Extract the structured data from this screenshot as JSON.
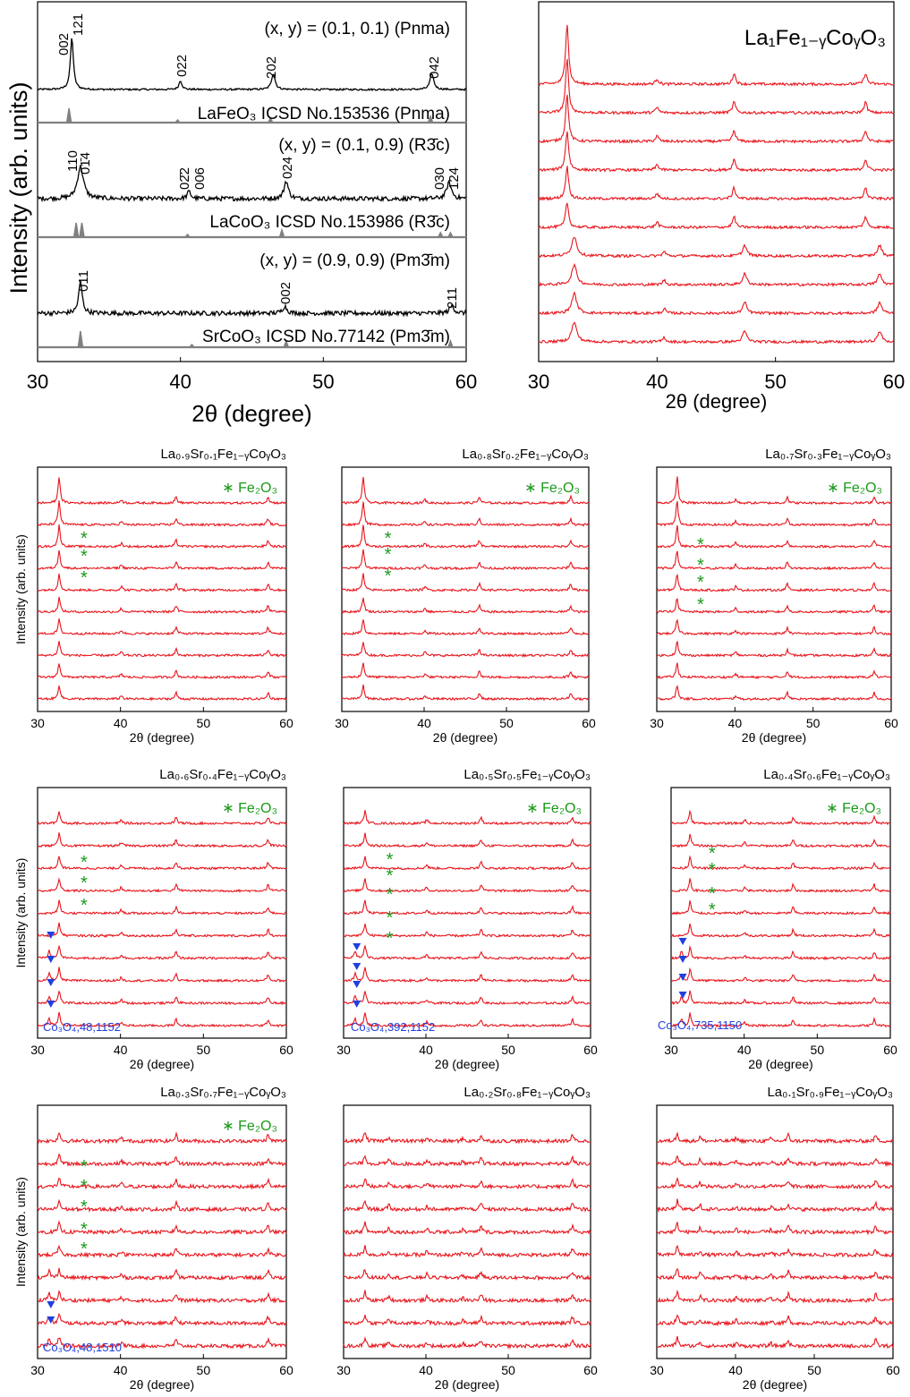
{
  "colors": {
    "sample": "#e8141b",
    "reference": "#808080",
    "measured": "#000000",
    "fe2o3": "#1a9a1a",
    "co3o4": "#1f3fe0"
  },
  "left_panel": {
    "ylabel": "Intensity (arb. units)",
    "xlabel": "2θ (degree)",
    "xticks": [
      "30",
      "40",
      "50",
      "60"
    ],
    "labels": {
      "p1": "(x, y) = (0.1, 0.1) (Pnma)",
      "r1": "LaFeO₃ ICSD No.153536 (Pnma)",
      "p2": "(x, y) = (0.1, 0.9) (R3̄c)",
      "r2": "LaCoO₃ ICSD No.153986 (R3̄c)",
      "p3": "(x, y) = (0.9, 0.9) (Pm3̄m)",
      "r3": "SrCoO₃ ICSD No.77142 (Pm3̄m)"
    },
    "miller": {
      "m002": "002",
      "m121": "121",
      "m022": "022",
      "m202": "202",
      "m042": "042",
      "m110": "110",
      "m014": "01̄4",
      "m022b": "02̄2",
      "m006": "006",
      "m024": "024",
      "m030": "030",
      "m124": "124",
      "m011": "011",
      "m002b": "002",
      "m211": "211"
    }
  },
  "chart_data": [
    {
      "type": "line",
      "title": "",
      "xlabel": "2θ (degree)",
      "ylabel": "Intensity (arb. units)",
      "xlim": [
        30,
        60
      ],
      "series": [
        {
          "name": "(x, y) = (0.1, 0.1) (Pnma)",
          "peaks": [
            [
              32.4,
              1.0
            ],
            [
              40.0,
              0.18
            ],
            [
              46.5,
              0.35
            ],
            [
              57.6,
              0.3
            ]
          ]
        },
        {
          "name": "LaFeO3 ICSD No.153536 (Pnma)",
          "peaks": [
            [
              32.2,
              1.0
            ],
            [
              39.8,
              0.1
            ],
            [
              46.3,
              0.2
            ],
            [
              57.5,
              0.25
            ]
          ]
        },
        {
          "name": "(x, y) = (0.1, 0.9) (R-3c)",
          "peaks": [
            [
              33.0,
              0.55
            ],
            [
              40.6,
              0.15
            ],
            [
              47.4,
              0.4
            ],
            [
              58.8,
              0.3
            ]
          ]
        },
        {
          "name": "LaCoO3 ICSD No.153986 (R-3c)",
          "peaks": [
            [
              32.7,
              0.9
            ],
            [
              33.1,
              0.9
            ],
            [
              40.5,
              0.15
            ],
            [
              47.1,
              0.4
            ],
            [
              58.2,
              0.3
            ],
            [
              58.9,
              0.3
            ]
          ]
        },
        {
          "name": "(x, y) = (0.9, 0.9) (Pm-3m)",
          "peaks": [
            [
              33.0,
              0.55
            ],
            [
              47.3,
              0.15
            ],
            [
              59.0,
              0.15
            ]
          ]
        },
        {
          "name": "SrCoO3 ICSD No.77142 (Pm-3m)",
          "peaks": [
            [
              33.0,
              1.0
            ],
            [
              40.8,
              0.1
            ],
            [
              47.4,
              0.35
            ],
            [
              58.9,
              0.3
            ]
          ]
        }
      ]
    },
    {
      "type": "line",
      "title": "La₁Fe₁₋ᵧCoᵧO₃",
      "xlabel": "2θ (degree)",
      "xlim": [
        30,
        60
      ],
      "curves": 10
    },
    {
      "type": "line",
      "title": "La₀.₉Sr₀.₁Fe₁₋ᵧCoᵧO₃",
      "ylabel": "Intensity (arb. units)",
      "xlabel": "2θ (degree)",
      "xlim": [
        30,
        60
      ],
      "curves": 10,
      "legend": "∗ Fe₂O₃"
    },
    {
      "type": "line",
      "title": "La₀.₈Sr₀.₂Fe₁₋ᵧCoᵧO₃",
      "xlabel": "2θ (degree)",
      "xlim": [
        30,
        60
      ],
      "curves": 10,
      "legend": "∗ Fe₂O₃"
    },
    {
      "type": "line",
      "title": "La₀.₇Sr₀.₃Fe₁₋ᵧCoᵧO₃",
      "xlabel": "2θ (degree)",
      "xlim": [
        30,
        60
      ],
      "curves": 10,
      "legend": "∗ Fe₂O₃"
    },
    {
      "type": "line",
      "title": "La₀.₆Sr₀.₄Fe₁₋ᵧCoᵧO₃",
      "ylabel": "Intensity (arb. units)",
      "xlabel": "2θ (degree)",
      "xlim": [
        30,
        60
      ],
      "curves": 10,
      "legend": "∗ Fe₂O₃",
      "marker_label": "Co₃O₄"
    },
    {
      "type": "line",
      "title": "La₀.₅Sr₀.₅Fe₁₋ᵧCoᵧO₃",
      "xlabel": "2θ (degree)",
      "xlim": [
        30,
        60
      ],
      "curves": 10,
      "legend": "∗ Fe₂O₃",
      "marker_label": "Co₃O₄"
    },
    {
      "type": "line",
      "title": "La₀.₄Sr₀.₆Fe₁₋ᵧCoᵧO₃",
      "xlabel": "2θ (degree)",
      "xlim": [
        30,
        60
      ],
      "curves": 10,
      "legend": "∗ Fe₂O₃",
      "marker_label": "Co₃O₄"
    },
    {
      "type": "line",
      "title": "La₀.₃Sr₀.₇Fe₁₋ᵧCoᵧO₃",
      "ylabel": "Intensity (arb. units)",
      "xlabel": "2θ (degree)",
      "xlim": [
        30,
        60
      ],
      "curves": 10,
      "legend": "∗ Fe₂O₃",
      "marker_label": "Co₃O₄"
    },
    {
      "type": "line",
      "title": "La₀.₂Sr₀.₈Fe₁₋ᵧCoᵧO₃",
      "xlabel": "2θ (degree)",
      "xlim": [
        30,
        60
      ],
      "curves": 10
    },
    {
      "type": "line",
      "title": "La₀.₁Sr₀.₉Fe₁₋ᵧCoᵧO₃",
      "xlabel": "2θ (degree)",
      "xlim": [
        30,
        60
      ],
      "curves": 10
    }
  ]
}
